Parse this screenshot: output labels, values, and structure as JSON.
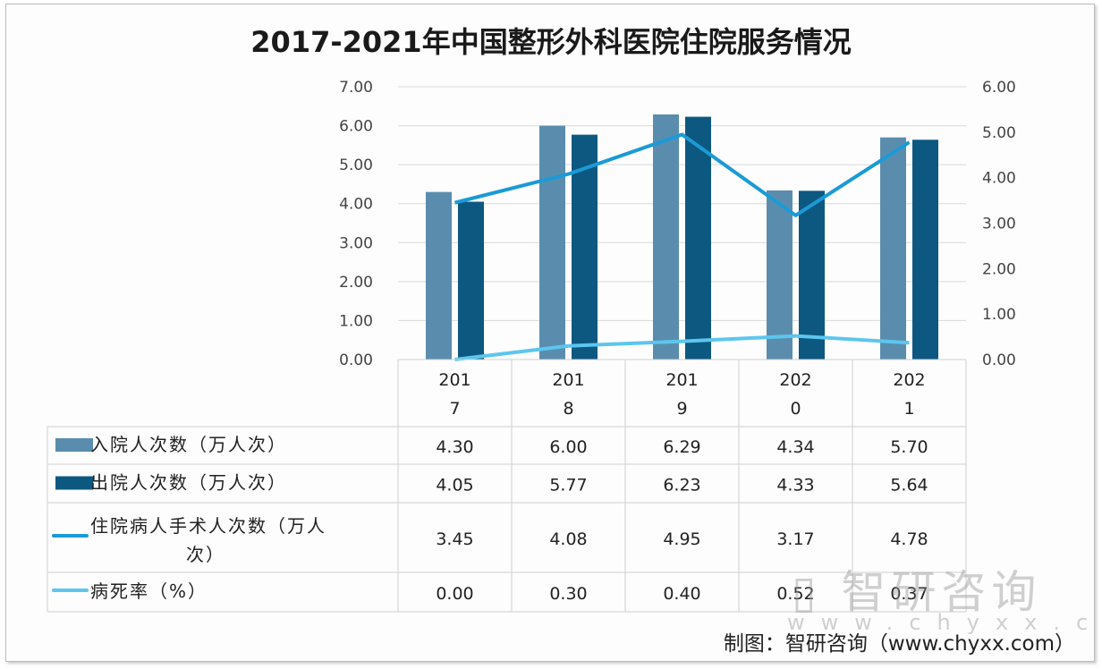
{
  "chart_data": {
    "type": "bar",
    "title": "2017-2021年中国整形外科医院住院服务情况",
    "categories": [
      "2017",
      "2018",
      "2019",
      "2020",
      "2021"
    ],
    "category_labels": [
      [
        "201",
        "7"
      ],
      [
        "201",
        "8"
      ],
      [
        "201",
        "9"
      ],
      [
        "202",
        "0"
      ],
      [
        "202",
        "1"
      ]
    ],
    "y_left": {
      "range": [
        0,
        7
      ],
      "ticks": [
        "0.00",
        "1.00",
        "2.00",
        "3.00",
        "4.00",
        "5.00",
        "6.00",
        "7.00"
      ]
    },
    "y_right": {
      "range": [
        0,
        6
      ],
      "ticks": [
        "0.00",
        "1.00",
        "2.00",
        "3.00",
        "4.00",
        "5.00",
        "6.00"
      ]
    },
    "grid": true,
    "legend_placement": "data-table",
    "series": [
      {
        "name": "入院人次数（万人次）",
        "type": "bar",
        "axis": "left",
        "color": "#5a8dad",
        "values": [
          4.3,
          6.0,
          6.29,
          4.34,
          5.7
        ],
        "labels": [
          "4.30",
          "6.00",
          "6.29",
          "4.34",
          "5.70"
        ],
        "legend_lines": [
          "入院人次数（万人次）"
        ]
      },
      {
        "name": "出院人次数（万人次）",
        "type": "bar",
        "axis": "left",
        "color": "#0d5880",
        "values": [
          4.05,
          5.77,
          6.23,
          4.33,
          5.64
        ],
        "labels": [
          "4.05",
          "5.77",
          "6.23",
          "4.33",
          "5.64"
        ],
        "legend_lines": [
          "出院人次数（万人次）"
        ]
      },
      {
        "name": "住院病人手术人次数（万人次）",
        "type": "line",
        "axis": "right",
        "color": "#1b9ad6",
        "values": [
          3.45,
          4.08,
          4.95,
          3.17,
          4.78
        ],
        "labels": [
          "3.45",
          "4.08",
          "4.95",
          "3.17",
          "4.78"
        ],
        "legend_lines": [
          "住院病人手术人次数（万人",
          "次）"
        ]
      },
      {
        "name": "病死率（%）",
        "type": "line",
        "axis": "right",
        "color": "#5cc6ee",
        "values": [
          0.0,
          0.3,
          0.4,
          0.52,
          0.37
        ],
        "labels": [
          "0.00",
          "0.30",
          "0.40",
          "0.52",
          "0.37"
        ],
        "legend_lines": [
          "病死率（%）"
        ]
      }
    ]
  },
  "source": "制图：智研咨询（www.chyxx.com）",
  "watermark": {
    "name": "智研咨询",
    "url": "www.chyxx.com"
  }
}
